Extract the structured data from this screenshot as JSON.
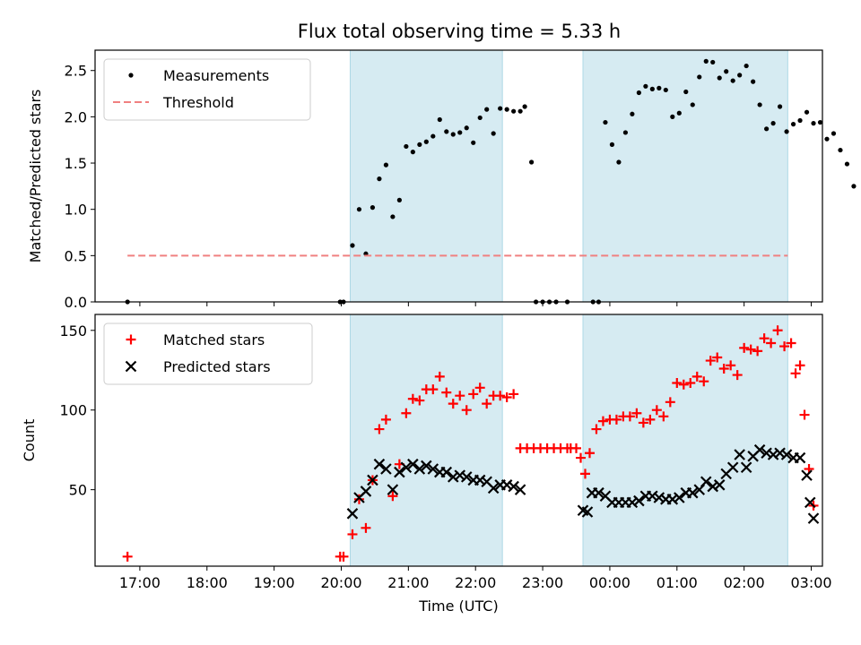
{
  "figure_title": "Flux total observing time = 5.33 h",
  "chart_data": [
    {
      "type": "scatter",
      "ylabel": "Matched/Predicted stars",
      "xlabel": "",
      "ylim": [
        0,
        2.72
      ],
      "yticks": [
        "0.0",
        "0.5",
        "1.0",
        "1.5",
        "2.0",
        "2.5"
      ],
      "legend_position": "upper-left",
      "shaded_intervals": [
        [
          "2024-01-01T20:08",
          "2024-01-01T22:24"
        ],
        [
          "2024-01-01T23:36",
          "2024-01-02T02:39"
        ]
      ],
      "series": [
        {
          "name": "Measurements",
          "marker": "dot",
          "color": "#000000",
          "points": [
            [
              "2024-01-01T16:49",
              0.0
            ],
            [
              "2024-01-01T19:59",
              0.0
            ],
            [
              "2024-01-01T20:02",
              0.0
            ],
            [
              "2024-01-01T20:10",
              0.61
            ],
            [
              "2024-01-01T20:16",
              1.0
            ],
            [
              "2024-01-01T20:22",
              0.52
            ],
            [
              "2024-01-01T20:28",
              1.02
            ],
            [
              "2024-01-01T20:34",
              1.33
            ],
            [
              "2024-01-01T20:40",
              1.48
            ],
            [
              "2024-01-01T20:46",
              0.92
            ],
            [
              "2024-01-01T20:52",
              1.1
            ],
            [
              "2024-01-01T20:58",
              1.68
            ],
            [
              "2024-01-01T21:04",
              1.62
            ],
            [
              "2024-01-01T21:10",
              1.7
            ],
            [
              "2024-01-01T21:16",
              1.73
            ],
            [
              "2024-01-01T21:22",
              1.79
            ],
            [
              "2024-01-01T21:28",
              1.97
            ],
            [
              "2024-01-01T21:34",
              1.84
            ],
            [
              "2024-01-01T21:40",
              1.81
            ],
            [
              "2024-01-01T21:46",
              1.83
            ],
            [
              "2024-01-01T21:52",
              1.88
            ],
            [
              "2024-01-01T21:58",
              1.72
            ],
            [
              "2024-01-01T22:04",
              1.99
            ],
            [
              "2024-01-01T22:10",
              2.08
            ],
            [
              "2024-01-01T22:16",
              1.82
            ],
            [
              "2024-01-01T22:22",
              2.09
            ],
            [
              "2024-01-01T22:28",
              2.08
            ],
            [
              "2024-01-01T22:34",
              2.06
            ],
            [
              "2024-01-01T22:40",
              2.06
            ],
            [
              "2024-01-01T22:44",
              2.11
            ],
            [
              "2024-01-01T22:50",
              1.51
            ],
            [
              "2024-01-01T22:54",
              0.0
            ],
            [
              "2024-01-01T23:00",
              0.0
            ],
            [
              "2024-01-01T23:06",
              0.0
            ],
            [
              "2024-01-01T23:12",
              0.0
            ],
            [
              "2024-01-01T23:22",
              0.0
            ],
            [
              "2024-01-01T23:45",
              0.0
            ],
            [
              "2024-01-01T23:50",
              0.0
            ],
            [
              "2024-01-01T23:56",
              1.94
            ],
            [
              "2024-01-02T00:02",
              1.7
            ],
            [
              "2024-01-02T00:08",
              1.51
            ],
            [
              "2024-01-02T00:14",
              1.83
            ],
            [
              "2024-01-02T00:20",
              2.03
            ],
            [
              "2024-01-02T00:26",
              2.26
            ],
            [
              "2024-01-02T00:32",
              2.33
            ],
            [
              "2024-01-02T00:38",
              2.3
            ],
            [
              "2024-01-02T00:44",
              2.31
            ],
            [
              "2024-01-02T00:50",
              2.29
            ],
            [
              "2024-01-02T00:56",
              2.0
            ],
            [
              "2024-01-02T01:02",
              2.04
            ],
            [
              "2024-01-02T01:08",
              2.27
            ],
            [
              "2024-01-02T01:14",
              2.13
            ],
            [
              "2024-01-02T01:20",
              2.43
            ],
            [
              "2024-01-02T01:26",
              2.6
            ],
            [
              "2024-01-02T01:32",
              2.59
            ],
            [
              "2024-01-02T01:38",
              2.42
            ],
            [
              "2024-01-02T01:44",
              2.49
            ],
            [
              "2024-01-02T01:50",
              2.39
            ],
            [
              "2024-01-02T01:56",
              2.45
            ],
            [
              "2024-01-02T02:02",
              2.55
            ],
            [
              "2024-01-02T02:08",
              2.38
            ],
            [
              "2024-01-02T02:14",
              2.13
            ],
            [
              "2024-01-02T02:20",
              1.87
            ],
            [
              "2024-01-02T02:26",
              1.93
            ],
            [
              "2024-01-02T02:32",
              2.11
            ],
            [
              "2024-01-02T02:38",
              1.84
            ],
            [
              "2024-01-02T02:44",
              1.92
            ],
            [
              "2024-01-02T02:50",
              1.96
            ],
            [
              "2024-01-02T02:56",
              2.05
            ],
            [
              "2024-01-02T03:02",
              1.93
            ],
            [
              "2024-01-02T03:08",
              1.94
            ],
            [
              "2024-01-02T03:14",
              1.76
            ],
            [
              "2024-01-02T03:20",
              1.82
            ],
            [
              "2024-01-02T03:26",
              1.64
            ],
            [
              "2024-01-02T03:32",
              1.49
            ],
            [
              "2024-01-02T03:38",
              1.25
            ]
          ]
        },
        {
          "name": "Threshold",
          "line_style": "dashed",
          "color": "#f08080",
          "points": [
            [
              "2024-01-01T16:49",
              0.5
            ],
            [
              "2024-01-02T02:39",
              0.5
            ]
          ]
        }
      ]
    },
    {
      "type": "scatter",
      "ylabel": "Count",
      "xlabel": "Time (UTC)",
      "ylim": [
        2,
        160
      ],
      "yticks": [
        "50",
        "100",
        "150"
      ],
      "xlim": [
        "2024-01-01T16:20",
        "2024-01-02T03:10"
      ],
      "xticks": [
        "17:00",
        "18:00",
        "19:00",
        "20:00",
        "21:00",
        "22:00",
        "23:00",
        "00:00",
        "01:00",
        "02:00",
        "03:00"
      ],
      "legend_position": "upper-left",
      "shaded_intervals": [
        [
          "2024-01-01T20:08",
          "2024-01-01T22:24"
        ],
        [
          "2024-01-01T23:36",
          "2024-01-02T02:39"
        ]
      ],
      "series": [
        {
          "name": "Matched stars",
          "marker": "plus",
          "color": "#ff0000",
          "points": [
            [
              "2024-01-01T16:49",
              8
            ],
            [
              "2024-01-01T19:59",
              8
            ],
            [
              "2024-01-01T20:02",
              8
            ],
            [
              "2024-01-01T20:10",
              22
            ],
            [
              "2024-01-01T20:16",
              44
            ],
            [
              "2024-01-01T20:22",
              26
            ],
            [
              "2024-01-01T20:28",
              56
            ],
            [
              "2024-01-01T20:34",
              88
            ],
            [
              "2024-01-01T20:40",
              94
            ],
            [
              "2024-01-01T20:46",
              46
            ],
            [
              "2024-01-01T20:52",
              66
            ],
            [
              "2024-01-01T20:58",
              98
            ],
            [
              "2024-01-01T21:04",
              107
            ],
            [
              "2024-01-01T21:10",
              106
            ],
            [
              "2024-01-01T21:16",
              113
            ],
            [
              "2024-01-01T21:22",
              113
            ],
            [
              "2024-01-01T21:28",
              121
            ],
            [
              "2024-01-01T21:34",
              111
            ],
            [
              "2024-01-01T21:40",
              104
            ],
            [
              "2024-01-01T21:46",
              109
            ],
            [
              "2024-01-01T21:52",
              100
            ],
            [
              "2024-01-01T21:58",
              110
            ],
            [
              "2024-01-01T22:04",
              114
            ],
            [
              "2024-01-01T22:10",
              104
            ],
            [
              "2024-01-01T22:16",
              109
            ],
            [
              "2024-01-01T22:22",
              109
            ],
            [
              "2024-01-01T22:28",
              108
            ],
            [
              "2024-01-01T22:34",
              110
            ],
            [
              "2024-01-01T22:40",
              76
            ],
            [
              "2024-01-01T22:46",
              76
            ],
            [
              "2024-01-01T22:52",
              76
            ],
            [
              "2024-01-01T22:58",
              76
            ],
            [
              "2024-01-01T23:04",
              76
            ],
            [
              "2024-01-01T23:10",
              76
            ],
            [
              "2024-01-01T23:16",
              76
            ],
            [
              "2024-01-01T23:22",
              76
            ],
            [
              "2024-01-01T23:25",
              76
            ],
            [
              "2024-01-01T23:30",
              76
            ],
            [
              "2024-01-01T23:34",
              70
            ],
            [
              "2024-01-01T23:38",
              60
            ],
            [
              "2024-01-01T23:42",
              73
            ],
            [
              "2024-01-01T23:48",
              88
            ],
            [
              "2024-01-01T23:54",
              93
            ],
            [
              "2024-01-02T00:00",
              94
            ],
            [
              "2024-01-02T00:06",
              94
            ],
            [
              "2024-01-02T00:12",
              96
            ],
            [
              "2024-01-02T00:18",
              96
            ],
            [
              "2024-01-02T00:24",
              98
            ],
            [
              "2024-01-02T00:30",
              92
            ],
            [
              "2024-01-02T00:36",
              94
            ],
            [
              "2024-01-02T00:42",
              100
            ],
            [
              "2024-01-02T00:48",
              96
            ],
            [
              "2024-01-02T00:54",
              105
            ],
            [
              "2024-01-02T01:00",
              117
            ],
            [
              "2024-01-02T01:06",
              116
            ],
            [
              "2024-01-02T01:12",
              117
            ],
            [
              "2024-01-02T01:18",
              121
            ],
            [
              "2024-01-02T01:24",
              118
            ],
            [
              "2024-01-02T01:30",
              131
            ],
            [
              "2024-01-02T01:36",
              133
            ],
            [
              "2024-01-02T01:42",
              126
            ],
            [
              "2024-01-02T01:48",
              128
            ],
            [
              "2024-01-02T01:54",
              122
            ],
            [
              "2024-01-02T02:00",
              139
            ],
            [
              "2024-01-02T02:06",
              138
            ],
            [
              "2024-01-02T02:12",
              137
            ],
            [
              "2024-01-02T02:18",
              145
            ],
            [
              "2024-01-02T02:24",
              142
            ],
            [
              "2024-01-02T02:30",
              150
            ],
            [
              "2024-01-02T02:36",
              140
            ],
            [
              "2024-01-02T02:42",
              142
            ],
            [
              "2024-01-02T02:46",
              123
            ],
            [
              "2024-01-02T02:50",
              128
            ],
            [
              "2024-01-02T02:54",
              97
            ],
            [
              "2024-01-02T02:58",
              63
            ],
            [
              "2024-01-02T03:02",
              40
            ]
          ]
        },
        {
          "name": "Predicted stars",
          "marker": "x",
          "color": "#000000",
          "points": [
            [
              "2024-01-01T20:10",
              35
            ],
            [
              "2024-01-01T20:16",
              45
            ],
            [
              "2024-01-01T20:22",
              49
            ],
            [
              "2024-01-01T20:28",
              56
            ],
            [
              "2024-01-01T20:34",
              66
            ],
            [
              "2024-01-01T20:40",
              63
            ],
            [
              "2024-01-01T20:46",
              50
            ],
            [
              "2024-01-01T20:52",
              61
            ],
            [
              "2024-01-01T20:58",
              64
            ],
            [
              "2024-01-01T21:04",
              66
            ],
            [
              "2024-01-01T21:10",
              63
            ],
            [
              "2024-01-01T21:16",
              65
            ],
            [
              "2024-01-01T21:22",
              63
            ],
            [
              "2024-01-01T21:28",
              61
            ],
            [
              "2024-01-01T21:34",
              61
            ],
            [
              "2024-01-01T21:40",
              58
            ],
            [
              "2024-01-01T21:46",
              59
            ],
            [
              "2024-01-01T21:52",
              58
            ],
            [
              "2024-01-01T21:58",
              56
            ],
            [
              "2024-01-01T22:04",
              56
            ],
            [
              "2024-01-01T22:10",
              55
            ],
            [
              "2024-01-01T22:16",
              51
            ],
            [
              "2024-01-01T22:22",
              53
            ],
            [
              "2024-01-01T22:28",
              53
            ],
            [
              "2024-01-01T22:34",
              52
            ],
            [
              "2024-01-01T22:40",
              50
            ],
            [
              "2024-01-01T23:36",
              37
            ],
            [
              "2024-01-01T23:40",
              36
            ],
            [
              "2024-01-01T23:44",
              48
            ],
            [
              "2024-01-01T23:50",
              48
            ],
            [
              "2024-01-01T23:56",
              46
            ],
            [
              "2024-01-02T00:02",
              42
            ],
            [
              "2024-01-02T00:08",
              42
            ],
            [
              "2024-01-02T00:14",
              42
            ],
            [
              "2024-01-02T00:20",
              42
            ],
            [
              "2024-01-02T00:26",
              43
            ],
            [
              "2024-01-02T00:32",
              46
            ],
            [
              "2024-01-02T00:38",
              46
            ],
            [
              "2024-01-02T00:44",
              45
            ],
            [
              "2024-01-02T00:50",
              44
            ],
            [
              "2024-01-02T00:56",
              44
            ],
            [
              "2024-01-02T01:02",
              45
            ],
            [
              "2024-01-02T01:08",
              48
            ],
            [
              "2024-01-02T01:14",
              48
            ],
            [
              "2024-01-02T01:20",
              50
            ],
            [
              "2024-01-02T01:26",
              55
            ],
            [
              "2024-01-02T01:32",
              52
            ],
            [
              "2024-01-02T01:38",
              53
            ],
            [
              "2024-01-02T01:44",
              60
            ],
            [
              "2024-01-02T01:50",
              64
            ],
            [
              "2024-01-02T01:56",
              72
            ],
            [
              "2024-01-02T02:02",
              64
            ],
            [
              "2024-01-02T02:08",
              71
            ],
            [
              "2024-01-02T02:14",
              75
            ],
            [
              "2024-01-02T02:20",
              73
            ],
            [
              "2024-01-02T02:26",
              72
            ],
            [
              "2024-01-02T02:32",
              73
            ],
            [
              "2024-01-02T02:38",
              72
            ],
            [
              "2024-01-02T02:44",
              70
            ],
            [
              "2024-01-02T02:50",
              70
            ],
            [
              "2024-01-02T02:56",
              59
            ],
            [
              "2024-01-02T02:59",
              42
            ],
            [
              "2024-01-02T03:02",
              32
            ]
          ]
        }
      ]
    }
  ],
  "colors": {
    "shade": "#add8e6",
    "threshold": "#f08080",
    "matched": "#ff0000",
    "predicted": "#000000",
    "measurements": "#000000"
  }
}
